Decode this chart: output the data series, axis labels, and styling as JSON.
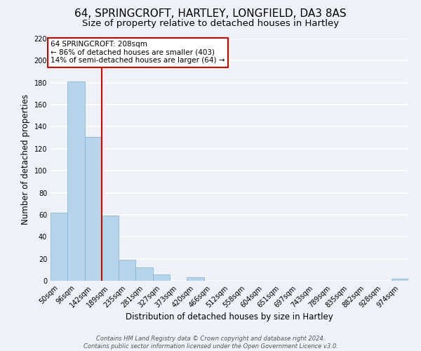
{
  "title": "64, SPRINGCROFT, HARTLEY, LONGFIELD, DA3 8AS",
  "subtitle": "Size of property relative to detached houses in Hartley",
  "xlabel": "Distribution of detached houses by size in Hartley",
  "ylabel": "Number of detached properties",
  "bar_labels": [
    "50sqm",
    "96sqm",
    "142sqm",
    "189sqm",
    "235sqm",
    "281sqm",
    "327sqm",
    "373sqm",
    "420sqm",
    "466sqm",
    "512sqm",
    "558sqm",
    "604sqm",
    "651sqm",
    "697sqm",
    "743sqm",
    "789sqm",
    "835sqm",
    "882sqm",
    "928sqm",
    "974sqm"
  ],
  "bar_values": [
    62,
    181,
    131,
    59,
    19,
    12,
    6,
    0,
    3,
    0,
    0,
    0,
    0,
    0,
    0,
    0,
    0,
    0,
    0,
    0,
    2
  ],
  "bar_color": "#b8d4ea",
  "bar_edge_color": "#7aafcf",
  "property_line_x": 2.5,
  "annotation_title": "64 SPRINGCROFT: 208sqm",
  "annotation_line1": "← 86% of detached houses are smaller (403)",
  "annotation_line2": "14% of semi-detached houses are larger (64) →",
  "annotation_box_color": "#ffffff",
  "annotation_box_edge": "#cc0000",
  "vertical_line_color": "#cc0000",
  "ylim": [
    0,
    220
  ],
  "yticks": [
    0,
    20,
    40,
    60,
    80,
    100,
    120,
    140,
    160,
    180,
    200,
    220
  ],
  "footer_line1": "Contains HM Land Registry data © Crown copyright and database right 2024.",
  "footer_line2": "Contains public sector information licensed under the Open Government Licence v3.0.",
  "background_color": "#eef2f8",
  "grid_color": "#ffffff",
  "title_fontsize": 11,
  "subtitle_fontsize": 9.5,
  "tick_fontsize": 7,
  "axis_label_fontsize": 8.5,
  "footer_fontsize": 6
}
